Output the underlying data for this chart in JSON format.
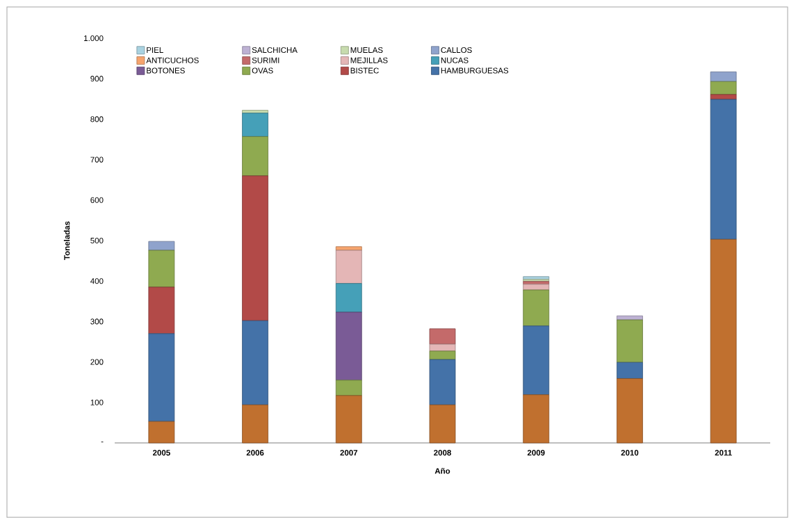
{
  "chart_data": {
    "type": "bar",
    "stacked": true,
    "xlabel": "Año",
    "ylabel": "Toneladas",
    "categories": [
      "2005",
      "2006",
      "2007",
      "2008",
      "2009",
      "2010",
      "2011"
    ],
    "ylim": [
      0,
      1000
    ],
    "yticks": [
      {
        "value": 0,
        "label": "-"
      },
      100,
      200,
      300,
      400,
      500,
      600,
      700,
      800,
      900,
      {
        "value": 1000,
        "label": "1.000"
      }
    ],
    "legend": "top",
    "series": [
      {
        "color": "#c0702f",
        "values": [
          53,
          94,
          117,
          94,
          119,
          159,
          503
        ]
      },
      {
        "name": "HAMBURGUESAS",
        "color": "#4472a8",
        "values": [
          217,
          208,
          null,
          112,
          170,
          40,
          346
        ]
      },
      {
        "name": "BISTEC",
        "color": "#b24a48",
        "values": [
          115,
          358,
          null,
          null,
          null,
          null,
          12
        ]
      },
      {
        "name": "OVAS",
        "color": "#8faa50",
        "values": [
          91,
          97,
          38,
          21,
          89,
          105,
          32
        ]
      },
      {
        "name": "BOTONES",
        "color": "#7a5b96",
        "values": [
          null,
          null,
          168,
          null,
          null,
          null,
          null
        ]
      },
      {
        "name": "NUCAS",
        "color": "#45a0b8",
        "values": [
          null,
          58,
          71,
          null,
          null,
          null,
          null
        ]
      },
      {
        "name": "MEJILLAS",
        "color": "#e4b6b6",
        "values": [
          null,
          null,
          82,
          17,
          14,
          null,
          null
        ]
      },
      {
        "name": "SURIMI",
        "color": "#c46a6a",
        "values": [
          null,
          null,
          null,
          38,
          7,
          null,
          null
        ]
      },
      {
        "name": "ANTICUCHOS",
        "color": "#f6a46e",
        "values": [
          null,
          null,
          9,
          null,
          null,
          null,
          null
        ]
      },
      {
        "name": "CALLOS",
        "color": "#8fa3cc",
        "values": [
          22,
          null,
          null,
          null,
          null,
          null,
          24
        ]
      },
      {
        "name": "MUELAS",
        "color": "#c7dbae",
        "values": [
          null,
          7,
          null,
          null,
          5,
          null,
          null
        ]
      },
      {
        "name": "SALCHICHA",
        "color": "#bdb1d3",
        "values": [
          null,
          null,
          null,
          null,
          null,
          10,
          null
        ]
      },
      {
        "name": "PIEL",
        "color": "#a9d2e0",
        "values": [
          null,
          null,
          null,
          null,
          7,
          null,
          null
        ]
      }
    ]
  }
}
